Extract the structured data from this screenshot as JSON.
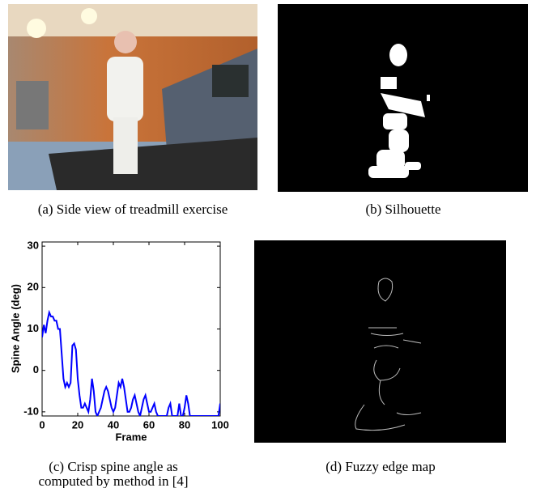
{
  "captions": {
    "a": "(a) Side view of treadmill exercise",
    "b": "(b) Silhouette",
    "c": [
      "(c) Crisp spine angle as",
      "computed by method in [4]"
    ],
    "d": "(d) Fuzzy edge map"
  },
  "chart_data": {
    "type": "line",
    "xlabel": "Frame",
    "ylabel": "Spine Angle (deg)",
    "color": "#0000ff",
    "x": [
      0,
      1,
      2,
      3,
      4,
      5,
      6,
      7,
      8,
      9,
      10,
      11,
      12,
      13,
      14,
      15,
      16,
      17,
      18,
      19,
      20,
      21,
      22,
      23,
      24,
      25,
      26,
      27,
      28,
      29,
      30,
      31,
      32,
      33,
      34,
      35,
      36,
      37,
      38,
      39,
      40,
      41,
      42,
      43,
      44,
      45,
      46,
      47,
      48,
      49,
      50,
      51,
      52,
      53,
      54,
      55,
      56,
      57,
      58,
      59,
      60,
      61,
      62,
      63,
      64,
      65,
      66,
      67,
      68,
      69,
      70,
      71,
      72,
      73,
      74,
      75,
      76,
      77,
      78,
      79,
      80,
      81,
      82,
      83,
      84,
      99,
      100
    ],
    "values": [
      8,
      11,
      9,
      12,
      14,
      13,
      13,
      12,
      12,
      10,
      10,
      4,
      -2,
      -4,
      -3,
      -4,
      -3,
      6,
      6.5,
      5,
      -2,
      -6,
      -9,
      -9,
      -8,
      -9,
      -10,
      -7,
      -2,
      -5,
      -10,
      -11,
      -10,
      -9,
      -7,
      -5,
      -4,
      -5,
      -7,
      -9,
      -10,
      -9,
      -6,
      -3,
      -4,
      -2,
      -4,
      -7,
      -10,
      -10,
      -9,
      -7,
      -6,
      -8,
      -10,
      -11,
      -9,
      -7,
      -6,
      -8,
      -10,
      -10,
      -9,
      -8,
      -10,
      -11,
      -11,
      -11,
      -11,
      -11,
      -11,
      -9,
      -8,
      -11,
      -11,
      -11,
      -11,
      -8,
      -11,
      -11,
      -9,
      -6,
      -8,
      -11,
      -11,
      -11,
      -8
    ],
    "xlim": [
      0,
      100
    ],
    "xticks": [
      0,
      20,
      40,
      60,
      80,
      100
    ],
    "ylim": [
      -11,
      31
    ],
    "yticks": [
      -10,
      0,
      10,
      20,
      30
    ]
  }
}
